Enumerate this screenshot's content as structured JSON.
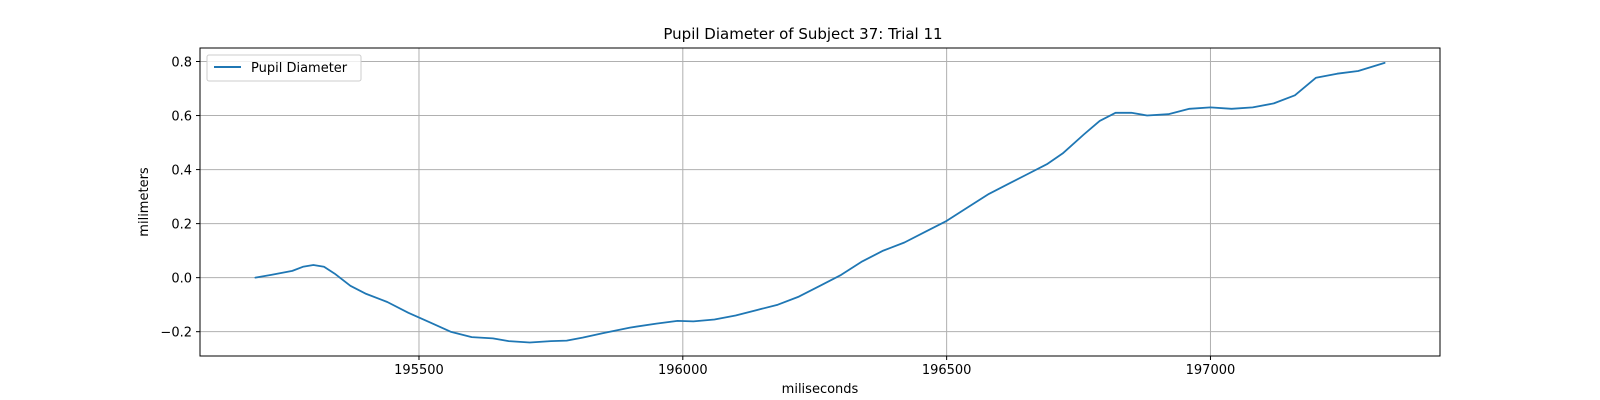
{
  "chart_data": {
    "type": "line",
    "title": "Pupil Diameter of Subject 37: Trial 11",
    "xlabel": "miliseconds",
    "ylabel": "milimeters",
    "xlim": [
      195085,
      197435
    ],
    "ylim": [
      -0.29,
      0.85
    ],
    "xticks": [
      195500,
      196000,
      196500,
      197000
    ],
    "yticks": [
      -0.2,
      0.0,
      0.2,
      0.4,
      0.6,
      0.8
    ],
    "xtick_labels": [
      "195500",
      "196000",
      "196500",
      "197000"
    ],
    "ytick_labels": [
      "−0.2",
      "0.0",
      "0.2",
      "0.4",
      "0.6",
      "0.8"
    ],
    "grid": true,
    "legend_position": "upper-left",
    "series": [
      {
        "name": "Pupil Diameter",
        "color": "#1f77b4",
        "x": [
          195190,
          195220,
          195260,
          195280,
          195300,
          195320,
          195340,
          195370,
          195400,
          195440,
          195480,
          195520,
          195560,
          195600,
          195640,
          195670,
          195710,
          195750,
          195780,
          195810,
          195850,
          195900,
          195950,
          195990,
          196020,
          196060,
          196100,
          196140,
          196180,
          196220,
          196260,
          196300,
          196340,
          196380,
          196420,
          196460,
          196500,
          196540,
          196580,
          196620,
          196650,
          196690,
          196720,
          196760,
          196790,
          196820,
          196850,
          196880,
          196920,
          196960,
          197000,
          197040,
          197080,
          197120,
          197160,
          197200,
          197240,
          197280,
          197330
        ],
        "y": [
          0.0,
          0.01,
          0.025,
          0.04,
          0.047,
          0.04,
          0.015,
          -0.03,
          -0.06,
          -0.09,
          -0.13,
          -0.165,
          -0.2,
          -0.22,
          -0.225,
          -0.235,
          -0.24,
          -0.235,
          -0.233,
          -0.222,
          -0.205,
          -0.185,
          -0.17,
          -0.16,
          -0.162,
          -0.155,
          -0.14,
          -0.12,
          -0.1,
          -0.07,
          -0.03,
          0.01,
          0.06,
          0.1,
          0.13,
          0.17,
          0.21,
          0.26,
          0.31,
          0.35,
          0.38,
          0.42,
          0.46,
          0.53,
          0.58,
          0.61,
          0.61,
          0.6,
          0.605,
          0.625,
          0.63,
          0.625,
          0.63,
          0.645,
          0.675,
          0.74,
          0.755,
          0.765,
          0.795
        ]
      }
    ]
  }
}
